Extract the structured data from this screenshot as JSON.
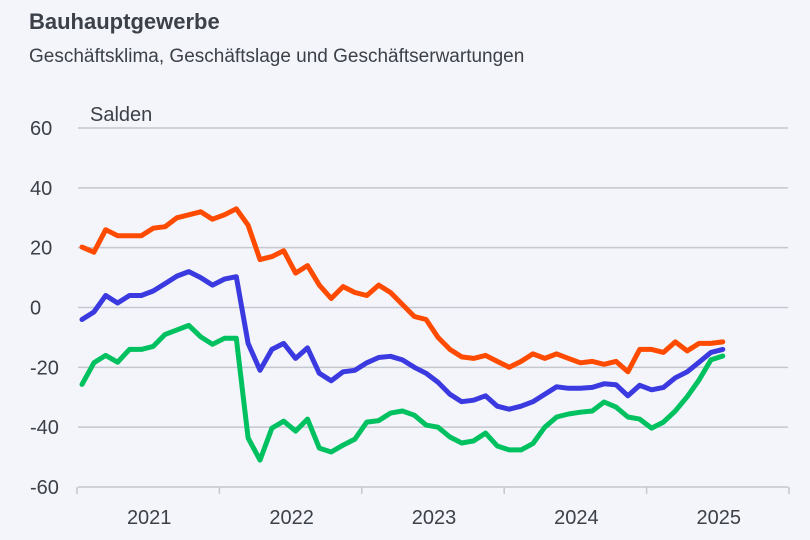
{
  "chart_data": {
    "type": "line",
    "title": "Bauhauptgewerbe",
    "subtitle": "Geschäftsklima, Geschäftslage und Geschäftserwartungen",
    "ylabel": "Salden",
    "xlabel": "",
    "ylim": [
      -60,
      60
    ],
    "yticks": [
      60,
      40,
      20,
      0,
      -20,
      -40,
      -60
    ],
    "xticks": [
      "2021",
      "2022",
      "2023",
      "2024",
      "2025"
    ],
    "x_start": "2021-01",
    "x_frequency": "monthly",
    "grid": true,
    "series": [
      {
        "color": "#ff4b00",
        "values": [
          20.2,
          18.5,
          26,
          24,
          24,
          24,
          26.5,
          27,
          30,
          31,
          32,
          29.5,
          31,
          33,
          27.5,
          16,
          17,
          19,
          11.5,
          14,
          7.5,
          3,
          7,
          5,
          4,
          7.5,
          5,
          1,
          -3,
          -4,
          -10,
          -14,
          -16.5,
          -17,
          -16,
          -18,
          -20,
          -18,
          -15.5,
          -17,
          -15.5,
          -17,
          -18.5,
          -18,
          -19,
          -18,
          -21.5,
          -14,
          -14,
          -15,
          -11.5,
          -14.5,
          -12,
          -12,
          -11.5
        ]
      },
      {
        "color": "#3b3ae0",
        "values": [
          -4,
          -1.5,
          4,
          1.5,
          4,
          4,
          5.5,
          8,
          10.5,
          12,
          10,
          7.5,
          9.5,
          10.3,
          -12,
          -21,
          -14,
          -12,
          -17,
          -13.5,
          -22,
          -24.5,
          -21.5,
          -21,
          -18.5,
          -16.7,
          -16.3,
          -17.5,
          -20,
          -22,
          -25,
          -29,
          -31.5,
          -31,
          -29.5,
          -33,
          -34,
          -33,
          -31.5,
          -29,
          -26.5,
          -27,
          -27,
          -26.7,
          -25.5,
          -25.8,
          -29.5,
          -26,
          -27.5,
          -26.7,
          -23.5,
          -21.5,
          -18.3,
          -15,
          -14
        ]
      },
      {
        "color": "#00c160",
        "values": [
          -25.7,
          -18.5,
          -16,
          -18.3,
          -14,
          -14,
          -13,
          -9,
          -7.5,
          -6,
          -9.8,
          -12.3,
          -10.3,
          -10.3,
          -43.6,
          -51,
          -40.3,
          -38,
          -41.3,
          -37.3,
          -47,
          -48.3,
          -46,
          -44,
          -38.3,
          -37.8,
          -35.3,
          -34.6,
          -36,
          -39.3,
          -40,
          -43.3,
          -45.3,
          -44.6,
          -42,
          -46.3,
          -47.6,
          -47.6,
          -45.5,
          -40,
          -36.6,
          -35.6,
          -35,
          -34.6,
          -31.6,
          -33.3,
          -36.6,
          -37.3,
          -40.3,
          -38.3,
          -34.6,
          -29.8,
          -24.2,
          -17.5,
          -16.2
        ]
      }
    ]
  }
}
